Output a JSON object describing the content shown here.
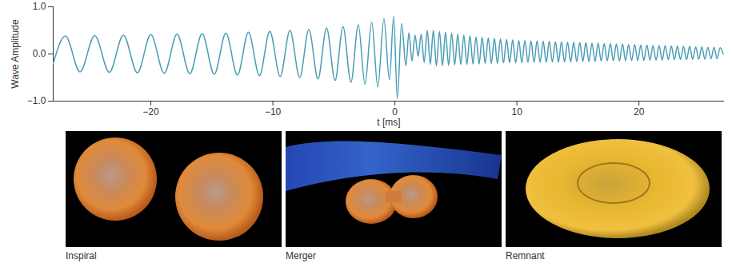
{
  "chart_data": {
    "type": "line",
    "x_label": "t [ms]",
    "y_label": "Wave Amplitude",
    "color": "#4a9db5",
    "grid": false,
    "xlim": [
      -28,
      27
    ],
    "xticks": [
      {
        "value": -20,
        "label": "−20"
      },
      {
        "value": -10,
        "label": "−10"
      },
      0,
      10,
      20
    ],
    "ylim": [
      -1,
      1
    ],
    "yticks": [
      {
        "value": -1,
        "label": "−1.0"
      },
      {
        "value": 0,
        "label": "0.0"
      },
      {
        "value": 1,
        "label": "1.0"
      }
    ],
    "x": [
      -28.0,
      -27.0,
      -25.8,
      -24.6,
      -23.4,
      -22.25,
      -21.1,
      -20.0,
      -18.9,
      -17.85,
      -16.8,
      -15.8,
      -14.8,
      -13.85,
      -12.9,
      -12.0,
      -11.1,
      -10.25,
      -9.4,
      -8.6,
      -7.8,
      -7.05,
      -6.3,
      -5.6,
      -4.9,
      -4.25,
      -3.6,
      -3.0,
      -2.45,
      -1.9,
      -1.4,
      -0.9,
      -0.45,
      -0.1,
      0.2,
      0.55,
      0.9,
      1.15,
      1.4,
      1.65,
      1.9,
      2.15,
      2.4,
      2.65,
      2.9,
      3.15,
      3.4,
      3.65,
      3.9,
      4.15,
      4.4,
      4.65,
      4.9,
      5.15,
      5.4,
      5.65,
      5.9,
      6.15,
      6.4,
      6.65,
      6.9,
      7.15,
      7.4,
      7.65,
      7.9,
      8.15,
      8.4,
      8.65,
      8.9,
      9.15,
      9.4,
      9.65,
      9.9,
      10.15,
      10.4,
      10.65,
      10.9,
      11.15,
      11.4,
      11.65,
      11.9,
      12.15,
      12.4,
      12.65,
      12.9,
      13.15,
      13.4,
      13.65,
      13.9,
      14.15,
      14.4,
      14.65,
      14.9,
      15.15,
      15.4,
      15.65,
      15.9,
      16.15,
      16.4,
      16.65,
      16.9,
      17.15,
      17.4,
      17.65,
      17.9,
      18.15,
      18.4,
      18.65,
      18.9,
      19.15,
      19.4,
      19.65,
      19.9,
      20.15,
      20.4,
      20.65,
      20.9,
      21.15,
      21.4,
      21.65,
      21.9,
      22.15,
      22.4,
      22.65,
      22.9,
      23.15,
      23.4,
      23.65,
      23.9,
      24.15,
      24.4,
      24.65,
      24.9,
      25.15,
      25.4,
      25.65,
      25.9,
      26.15,
      26.4,
      26.65,
      26.9
    ],
    "values": [
      -0.2,
      0.38,
      -0.38,
      0.39,
      -0.39,
      0.4,
      -0.4,
      0.41,
      -0.41,
      0.42,
      -0.42,
      0.43,
      -0.43,
      0.44,
      -0.45,
      0.46,
      -0.46,
      0.48,
      -0.48,
      0.5,
      -0.5,
      0.52,
      -0.53,
      0.55,
      -0.56,
      0.58,
      -0.6,
      0.62,
      -0.64,
      0.68,
      -0.7,
      0.75,
      -0.55,
      0.8,
      -0.95,
      0.65,
      -0.25,
      0.45,
      -0.15,
      0.4,
      -0.05,
      0.42,
      -0.18,
      0.5,
      -0.22,
      0.5,
      -0.25,
      0.48,
      -0.25,
      0.46,
      -0.24,
      0.44,
      -0.23,
      0.42,
      -0.22,
      0.4,
      -0.22,
      0.38,
      -0.21,
      0.36,
      -0.21,
      0.35,
      -0.2,
      0.34,
      -0.2,
      0.33,
      -0.2,
      0.32,
      -0.19,
      0.31,
      -0.19,
      0.3,
      -0.19,
      0.29,
      -0.19,
      0.29,
      -0.18,
      0.28,
      -0.18,
      0.28,
      -0.18,
      0.27,
      -0.18,
      0.27,
      -0.17,
      0.26,
      -0.17,
      0.26,
      -0.17,
      0.25,
      -0.17,
      0.25,
      -0.16,
      0.24,
      -0.16,
      0.24,
      -0.16,
      0.23,
      -0.16,
      0.23,
      -0.15,
      0.22,
      -0.15,
      0.22,
      -0.15,
      0.21,
      -0.15,
      0.21,
      -0.14,
      0.2,
      -0.14,
      0.2,
      -0.14,
      0.19,
      -0.14,
      0.19,
      -0.13,
      0.18,
      -0.13,
      0.18,
      -0.13,
      0.18,
      -0.12,
      0.17,
      -0.12,
      0.17,
      -0.12,
      0.16,
      -0.12,
      0.16,
      -0.11,
      0.15,
      -0.11,
      0.15,
      -0.11,
      0.14,
      -0.1,
      0.14,
      -0.1,
      0.13,
      0.0
    ]
  },
  "panels": [
    {
      "label": "Inspiral"
    },
    {
      "label": "Merger"
    },
    {
      "label": "Remnant"
    }
  ]
}
